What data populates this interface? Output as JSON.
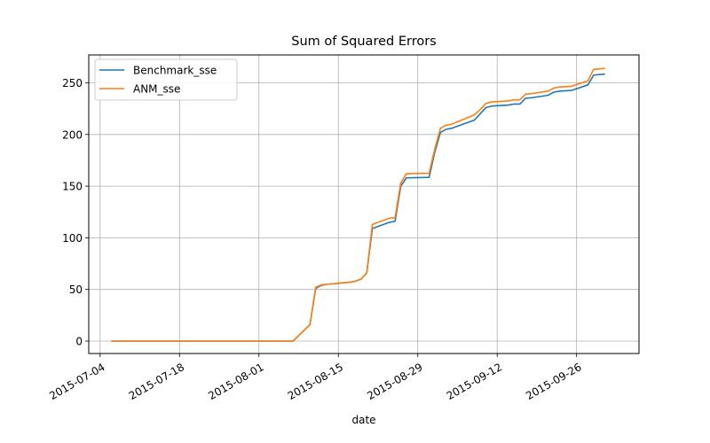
{
  "chart_data": {
    "type": "line",
    "title": "Sum of Squared Errors",
    "xlabel": "date",
    "ylabel": "",
    "x_type": "date",
    "xlim": [
      "2015-07-02",
      "2015-10-07"
    ],
    "ylim": [
      -12,
      277
    ],
    "x_ticks": [
      "2015-07-04",
      "2015-07-18",
      "2015-08-01",
      "2015-08-15",
      "2015-08-29",
      "2015-09-12",
      "2015-09-26"
    ],
    "y_ticks": [
      0,
      50,
      100,
      150,
      200,
      250
    ],
    "grid": true,
    "legend_position": "top-left",
    "series": [
      {
        "name": "Benchmark_sse",
        "color": "#1f77b4",
        "points": [
          [
            "2015-07-06",
            0
          ],
          [
            "2015-08-07",
            0
          ],
          [
            "2015-08-10",
            16
          ],
          [
            "2015-08-11",
            51
          ],
          [
            "2015-08-12",
            54
          ],
          [
            "2015-08-13",
            55
          ],
          [
            "2015-08-17",
            57
          ],
          [
            "2015-08-18",
            58
          ],
          [
            "2015-08-19",
            60
          ],
          [
            "2015-08-20",
            66
          ],
          [
            "2015-08-21",
            109
          ],
          [
            "2015-08-24",
            115
          ],
          [
            "2015-08-25",
            116
          ],
          [
            "2015-08-26",
            150
          ],
          [
            "2015-08-27",
            158
          ],
          [
            "2015-08-31",
            158.5
          ],
          [
            "2015-09-01",
            183
          ],
          [
            "2015-09-02",
            202
          ],
          [
            "2015-09-03",
            205
          ],
          [
            "2015-09-04",
            206
          ],
          [
            "2015-09-08",
            214
          ],
          [
            "2015-09-09",
            220
          ],
          [
            "2015-09-10",
            226
          ],
          [
            "2015-09-11",
            227.5
          ],
          [
            "2015-09-14",
            228.5
          ],
          [
            "2015-09-15",
            229.5
          ],
          [
            "2015-09-16",
            229.5
          ],
          [
            "2015-09-17",
            235
          ],
          [
            "2015-09-18",
            235.5
          ],
          [
            "2015-09-21",
            238
          ],
          [
            "2015-09-22",
            241
          ],
          [
            "2015-09-23",
            242
          ],
          [
            "2015-09-25",
            242.5
          ],
          [
            "2015-09-28",
            248
          ],
          [
            "2015-09-29",
            257.5
          ],
          [
            "2015-10-01",
            258.5
          ]
        ]
      },
      {
        "name": "ANM_sse",
        "color": "#ff7f0e",
        "points": [
          [
            "2015-07-06",
            0
          ],
          [
            "2015-08-07",
            0
          ],
          [
            "2015-08-10",
            16
          ],
          [
            "2015-08-11",
            52
          ],
          [
            "2015-08-12",
            54.5
          ],
          [
            "2015-08-13",
            55
          ],
          [
            "2015-08-17",
            57
          ],
          [
            "2015-08-18",
            58
          ],
          [
            "2015-08-19",
            60
          ],
          [
            "2015-08-20",
            66
          ],
          [
            "2015-08-21",
            113
          ],
          [
            "2015-08-24",
            119
          ],
          [
            "2015-08-25",
            119.5
          ],
          [
            "2015-08-26",
            153
          ],
          [
            "2015-08-27",
            162
          ],
          [
            "2015-08-31",
            162.5
          ],
          [
            "2015-09-01",
            186
          ],
          [
            "2015-09-02",
            206
          ],
          [
            "2015-09-03",
            209
          ],
          [
            "2015-09-04",
            210
          ],
          [
            "2015-09-08",
            219
          ],
          [
            "2015-09-09",
            224
          ],
          [
            "2015-09-10",
            230
          ],
          [
            "2015-09-11",
            231.5
          ],
          [
            "2015-09-14",
            232.5
          ],
          [
            "2015-09-15",
            233.5
          ],
          [
            "2015-09-16",
            233.5
          ],
          [
            "2015-09-17",
            239
          ],
          [
            "2015-09-18",
            239.5
          ],
          [
            "2015-09-21",
            242
          ],
          [
            "2015-09-22",
            245
          ],
          [
            "2015-09-23",
            246
          ],
          [
            "2015-09-25",
            246.5
          ],
          [
            "2015-09-28",
            252
          ],
          [
            "2015-09-29",
            263
          ],
          [
            "2015-10-01",
            264
          ]
        ]
      }
    ]
  }
}
